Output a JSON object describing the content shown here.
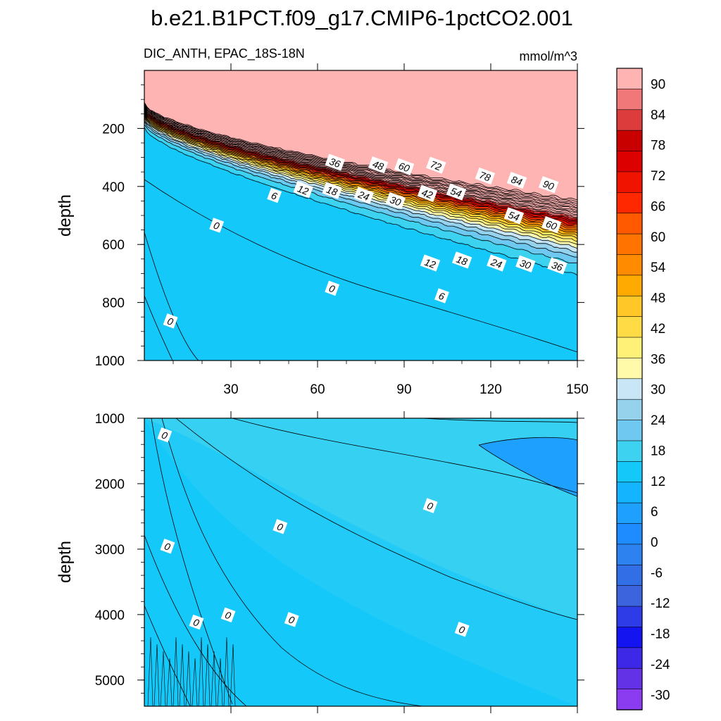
{
  "figure_title": "b.e21.B1PCT.f09_g17.CMIP6-1pctCO2.001",
  "colors": {
    "scale": [
      "#8c3cf0",
      "#6432e6",
      "#3c28e6",
      "#1414f0",
      "#2d3ce6",
      "#3c64dc",
      "#326ee6",
      "#2d82f0",
      "#1e8cff",
      "#1ea0ff",
      "#14b4ff",
      "#14c8fa",
      "#3cd2f0",
      "#6ec8f0",
      "#96d2eb",
      "#c8e6f5",
      "#fffaaa",
      "#fff078",
      "#ffdc46",
      "#ffc828",
      "#ffaa00",
      "#ff8c00",
      "#ff7300",
      "#ff5a00",
      "#ff2800",
      "#f01400",
      "#dc0000",
      "#c80000",
      "#dc3c3c",
      "#f07878",
      "#ffb4b4"
    ],
    "zero_fill": "#1e8cff"
  },
  "chart_data": [
    {
      "type": "contour",
      "panel": "upper",
      "title_left": "DIC_ANTH, EPAC_18S-18N",
      "units": "mmol/m^3",
      "xlim": [
        0,
        150
      ],
      "ylim": [
        0,
        1000
      ],
      "ylabel": "depth",
      "xticks": [
        30,
        60,
        90,
        120,
        150
      ],
      "yticks": [
        200,
        400,
        600,
        800,
        1000
      ],
      "contour_labels": [
        {
          "x": 66,
          "y": 318,
          "text": "36"
        },
        {
          "x": 81,
          "y": 327,
          "text": "48"
        },
        {
          "x": 90,
          "y": 333,
          "text": "60"
        },
        {
          "x": 101,
          "y": 328,
          "text": "72"
        },
        {
          "x": 118,
          "y": 365,
          "text": "78"
        },
        {
          "x": 129,
          "y": 380,
          "text": "84"
        },
        {
          "x": 140,
          "y": 395,
          "text": "90"
        },
        {
          "x": 45,
          "y": 432,
          "text": "6"
        },
        {
          "x": 55,
          "y": 412,
          "text": "12"
        },
        {
          "x": 65,
          "y": 415,
          "text": "18"
        },
        {
          "x": 76,
          "y": 432,
          "text": "24"
        },
        {
          "x": 87,
          "y": 450,
          "text": "30"
        },
        {
          "x": 98,
          "y": 425,
          "text": "42"
        },
        {
          "x": 108,
          "y": 420,
          "text": "54"
        },
        {
          "x": 128,
          "y": 502,
          "text": "54"
        },
        {
          "x": 141,
          "y": 533,
          "text": "60"
        },
        {
          "x": 25,
          "y": 535,
          "text": "0"
        },
        {
          "x": 99,
          "y": 665,
          "text": "12"
        },
        {
          "x": 110,
          "y": 655,
          "text": "18"
        },
        {
          "x": 122,
          "y": 665,
          "text": "24"
        },
        {
          "x": 132,
          "y": 668,
          "text": "30"
        },
        {
          "x": 143,
          "y": 675,
          "text": "36"
        },
        {
          "x": 65,
          "y": 752,
          "text": "0"
        },
        {
          "x": 103,
          "y": 778,
          "text": "6"
        },
        {
          "x": 9,
          "y": 865,
          "text": "0"
        }
      ]
    },
    {
      "type": "contour",
      "panel": "lower",
      "xlim": [
        0,
        150
      ],
      "ylim": [
        1000,
        5400
      ],
      "ylabel": "depth",
      "yticks": [
        1000,
        2000,
        3000,
        4000,
        5000
      ],
      "contour_labels": [
        {
          "x": 7,
          "y": 1260,
          "text": "0"
        },
        {
          "x": 99,
          "y": 2340,
          "text": "0"
        },
        {
          "x": 47,
          "y": 2660,
          "text": "0"
        },
        {
          "x": 8,
          "y": 2960,
          "text": "0"
        },
        {
          "x": 29,
          "y": 4010,
          "text": "0"
        },
        {
          "x": 51,
          "y": 4080,
          "text": "0"
        },
        {
          "x": 18,
          "y": 4120,
          "text": "0"
        },
        {
          "x": 110,
          "y": 4230,
          "text": "0"
        }
      ]
    },
    {
      "type": "colorbar",
      "levels": [
        -33,
        -30,
        -27,
        -24,
        -21,
        -18,
        -15,
        -12,
        -9,
        -6,
        -3,
        0,
        3,
        6,
        9,
        12,
        15,
        18,
        21,
        24,
        27,
        30,
        33,
        36,
        39,
        42,
        45,
        48,
        51,
        54,
        57,
        60,
        63,
        66,
        69,
        72,
        75,
        78,
        81,
        84,
        87,
        90,
        93
      ],
      "labels": [
        "90",
        "84",
        "78",
        "72",
        "66",
        "60",
        "54",
        "48",
        "42",
        "36",
        "30",
        "24",
        "18",
        "12",
        "6",
        "0",
        "-6",
        "-12",
        "-18",
        "-24",
        "-30"
      ]
    }
  ]
}
